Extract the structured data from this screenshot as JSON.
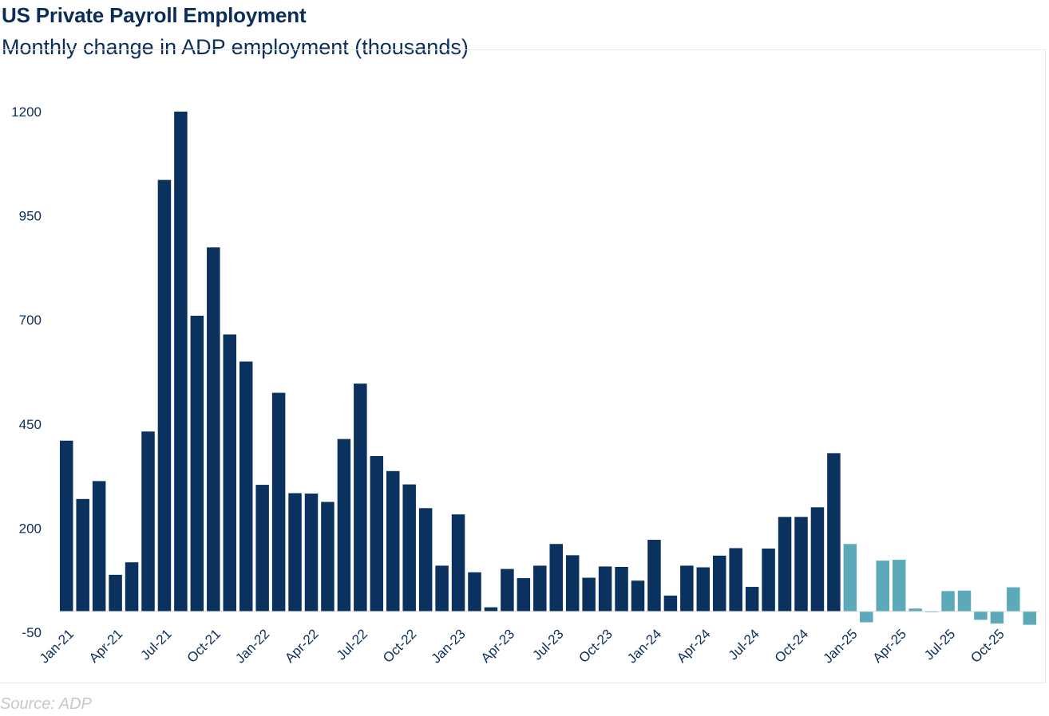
{
  "title": "US Private Payroll Employment",
  "subtitle": "Monthly change in ADP employment (thousands)",
  "source": "Source: ADP",
  "colors": {
    "actual": "#0b325f",
    "recent": "#5ca9b9",
    "text": "#0b2e59"
  },
  "chart_data": {
    "type": "bar",
    "title": "US Private Payroll Employment",
    "subtitle": "Monthly change in ADP employment (thousands)",
    "ylabel": "",
    "xlabel": "",
    "ylim": [
      -50,
      1200
    ],
    "yticks": [
      -50,
      200,
      450,
      700,
      950,
      1200
    ],
    "grid": false,
    "legend": "none",
    "categories": [
      "Jan-21",
      "Feb-21",
      "Mar-21",
      "Apr-21",
      "May-21",
      "Jun-21",
      "Jul-21",
      "Aug-21",
      "Sep-21",
      "Oct-21",
      "Nov-21",
      "Dec-21",
      "Jan-22",
      "Feb-22",
      "Mar-22",
      "Apr-22",
      "May-22",
      "Jun-22",
      "Jul-22",
      "Aug-22",
      "Sep-22",
      "Oct-22",
      "Nov-22",
      "Dec-22",
      "Jan-23",
      "Feb-23",
      "Mar-23",
      "Apr-23",
      "May-23",
      "Jun-23",
      "Jul-23",
      "Aug-23",
      "Sep-23",
      "Oct-23",
      "Nov-23",
      "Dec-23",
      "Jan-24",
      "Feb-24",
      "Mar-24",
      "Apr-24",
      "May-24",
      "Jun-24",
      "Jul-24",
      "Aug-24",
      "Sep-24",
      "Oct-24",
      "Nov-24",
      "Dec-24",
      "Jan-25",
      "Feb-25",
      "Mar-25",
      "Apr-25",
      "May-25",
      "Jun-25",
      "Jul-25",
      "Aug-25",
      "Sep-25",
      "Oct-25",
      "Nov-25",
      "Dec-25"
    ],
    "values": [
      410,
      270,
      313,
      88,
      118,
      432,
      1036,
      1200,
      710,
      874,
      665,
      600,
      304,
      525,
      284,
      283,
      263,
      414,
      547,
      373,
      337,
      305,
      248,
      110,
      233,
      94,
      10,
      102,
      80,
      110,
      162,
      135,
      81,
      108,
      107,
      74,
      172,
      38,
      110,
      106,
      134,
      152,
      59,
      151,
      227,
      227,
      250,
      380,
      162,
      -26,
      122,
      124,
      7,
      -1,
      49,
      50,
      -20,
      -29,
      58,
      -32
    ],
    "highlight_from_index": 48,
    "xtick_labels": [
      "Jan-21",
      "Apr-21",
      "Jul-21",
      "Oct-21",
      "Jan-22",
      "Apr-22",
      "Jul-22",
      "Oct-22",
      "Jan-23",
      "Apr-23",
      "Jul-23",
      "Oct-23",
      "Jan-24",
      "Apr-24",
      "Jul-24",
      "Oct-24",
      "Jan-25",
      "Apr-25",
      "Jul-25",
      "Oct-25"
    ],
    "xtick_every": 3
  }
}
